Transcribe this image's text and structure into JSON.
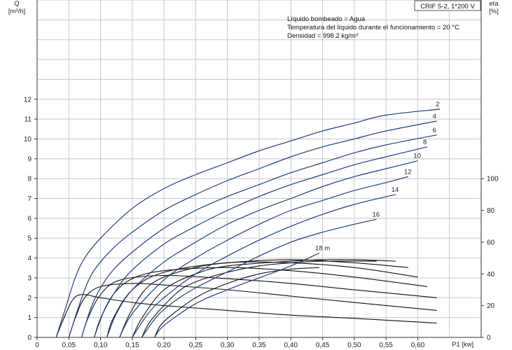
{
  "model_box": "CRIF 5-2, 1*200 V",
  "fluid_info": [
    "Líquido bombeado = Agua",
    "Temperatura del líquido durante el funcionamiento = 20 °C",
    "Densidad = 998.2 kg/m³"
  ],
  "colors": {
    "q_curves": "#1e3f78",
    "eta_curves": "#111111",
    "grid": "#c8c8c8",
    "axis": "#333333"
  },
  "chart_data": {
    "type": "line",
    "xlabel": "P1 [kw]",
    "ylabel_left": [
      "Q",
      "[m³/h]"
    ],
    "ylabel_right": [
      "eta",
      "[%]"
    ],
    "x_ticks": [
      "0",
      "0,05",
      "0,10",
      "0,15",
      "0,20",
      "0,25",
      "0,30",
      "0,35",
      "0,40",
      "0,45",
      "0,50",
      "0,55",
      "0,60"
    ],
    "x_tick_values": [
      0,
      0.05,
      0.1,
      0.15,
      0.2,
      0.25,
      0.3,
      0.35,
      0.4,
      0.45,
      0.5,
      0.55,
      0.6
    ],
    "xlim": [
      0,
      0.7
    ],
    "y_left_ticks": [
      "0",
      "1",
      "2",
      "3",
      "4",
      "5",
      "6",
      "7",
      "8",
      "9",
      "10",
      "11",
      "12"
    ],
    "y_left_tick_values": [
      0,
      1,
      2,
      3,
      4,
      5,
      6,
      7,
      8,
      9,
      10,
      11,
      12
    ],
    "ylim_left": [
      0,
      17
    ],
    "y_right_ticks": [
      "0",
      "20",
      "40",
      "60",
      "80",
      "100"
    ],
    "y_right_tick_values": [
      0,
      20,
      40,
      60,
      80,
      100
    ],
    "grid": true,
    "q_series": [
      {
        "name": "2",
        "points": [
          [
            0.03,
            0
          ],
          [
            0.045,
            1.5
          ],
          [
            0.06,
            3.0
          ],
          [
            0.075,
            4.0
          ],
          [
            0.1,
            5.0
          ],
          [
            0.15,
            6.5
          ],
          [
            0.2,
            7.5
          ],
          [
            0.25,
            8.2
          ],
          [
            0.3,
            8.8
          ],
          [
            0.35,
            9.4
          ],
          [
            0.4,
            9.9
          ],
          [
            0.45,
            10.4
          ],
          [
            0.5,
            10.8
          ],
          [
            0.55,
            11.2
          ],
          [
            0.635,
            11.5
          ]
        ]
      },
      {
        "name": "4",
        "points": [
          [
            0.05,
            0
          ],
          [
            0.065,
            1.5
          ],
          [
            0.08,
            2.8
          ],
          [
            0.095,
            3.6
          ],
          [
            0.12,
            4.5
          ],
          [
            0.15,
            5.3
          ],
          [
            0.2,
            6.4
          ],
          [
            0.25,
            7.2
          ],
          [
            0.3,
            7.9
          ],
          [
            0.35,
            8.5
          ],
          [
            0.4,
            9.1
          ],
          [
            0.45,
            9.6
          ],
          [
            0.5,
            10.0
          ],
          [
            0.55,
            10.4
          ],
          [
            0.63,
            10.9
          ]
        ]
      },
      {
        "name": "6",
        "points": [
          [
            0.07,
            0
          ],
          [
            0.085,
            1.5
          ],
          [
            0.1,
            2.5
          ],
          [
            0.12,
            3.4
          ],
          [
            0.15,
            4.3
          ],
          [
            0.2,
            5.5
          ],
          [
            0.25,
            6.4
          ],
          [
            0.3,
            7.1
          ],
          [
            0.35,
            7.7
          ],
          [
            0.4,
            8.3
          ],
          [
            0.45,
            8.8
          ],
          [
            0.5,
            9.3
          ],
          [
            0.55,
            9.7
          ],
          [
            0.63,
            10.2
          ]
        ]
      },
      {
        "name": "8",
        "points": [
          [
            0.09,
            0
          ],
          [
            0.105,
            1.3
          ],
          [
            0.125,
            2.4
          ],
          [
            0.15,
            3.4
          ],
          [
            0.2,
            4.7
          ],
          [
            0.25,
            5.6
          ],
          [
            0.3,
            6.4
          ],
          [
            0.35,
            7.1
          ],
          [
            0.4,
            7.7
          ],
          [
            0.45,
            8.2
          ],
          [
            0.5,
            8.7
          ],
          [
            0.55,
            9.1
          ],
          [
            0.615,
            9.6
          ]
        ]
      },
      {
        "name": "10",
        "points": [
          [
            0.11,
            0
          ],
          [
            0.125,
            1.2
          ],
          [
            0.15,
            2.4
          ],
          [
            0.2,
            3.8
          ],
          [
            0.25,
            4.8
          ],
          [
            0.3,
            5.7
          ],
          [
            0.35,
            6.4
          ],
          [
            0.4,
            7.0
          ],
          [
            0.45,
            7.6
          ],
          [
            0.5,
            8.1
          ],
          [
            0.55,
            8.5
          ],
          [
            0.6,
            8.9
          ]
        ]
      },
      {
        "name": "12",
        "points": [
          [
            0.13,
            0
          ],
          [
            0.15,
            1.2
          ],
          [
            0.2,
            2.9
          ],
          [
            0.25,
            4.0
          ],
          [
            0.3,
            4.9
          ],
          [
            0.35,
            5.7
          ],
          [
            0.4,
            6.4
          ],
          [
            0.45,
            6.9
          ],
          [
            0.5,
            7.4
          ],
          [
            0.55,
            7.8
          ],
          [
            0.585,
            8.1
          ]
        ]
      },
      {
        "name": "14",
        "points": [
          [
            0.15,
            0
          ],
          [
            0.175,
            1.2
          ],
          [
            0.2,
            2.0
          ],
          [
            0.25,
            3.2
          ],
          [
            0.3,
            4.1
          ],
          [
            0.35,
            4.9
          ],
          [
            0.4,
            5.6
          ],
          [
            0.45,
            6.2
          ],
          [
            0.5,
            6.7
          ],
          [
            0.565,
            7.2
          ]
        ]
      },
      {
        "name": "16",
        "points": [
          [
            0.165,
            0
          ],
          [
            0.19,
            1.1
          ],
          [
            0.22,
            1.9
          ],
          [
            0.25,
            2.5
          ],
          [
            0.3,
            3.3
          ],
          [
            0.35,
            4.1
          ],
          [
            0.4,
            4.8
          ],
          [
            0.45,
            5.3
          ],
          [
            0.5,
            5.7
          ],
          [
            0.535,
            5.95
          ]
        ]
      },
      {
        "name": "18 m",
        "points": [
          [
            0.185,
            0
          ],
          [
            0.2,
            0.6
          ],
          [
            0.25,
            1.7
          ],
          [
            0.3,
            2.4
          ],
          [
            0.35,
            3.0
          ],
          [
            0.4,
            3.6
          ],
          [
            0.445,
            4.25
          ]
        ]
      }
    ],
    "eta_series": [
      {
        "points": [
          [
            0.03,
            0
          ],
          [
            0.04,
            10
          ],
          [
            0.055,
            23
          ],
          [
            0.07,
            27
          ],
          [
            0.1,
            25
          ],
          [
            0.15,
            22
          ],
          [
            0.2,
            20
          ],
          [
            0.3,
            17
          ],
          [
            0.4,
            14
          ],
          [
            0.5,
            12
          ],
          [
            0.63,
            9
          ]
        ]
      },
      {
        "points": [
          [
            0.05,
            0
          ],
          [
            0.06,
            12
          ],
          [
            0.075,
            25
          ],
          [
            0.1,
            32
          ],
          [
            0.15,
            34
          ],
          [
            0.2,
            33
          ],
          [
            0.3,
            30
          ],
          [
            0.4,
            26
          ],
          [
            0.5,
            22
          ],
          [
            0.63,
            17
          ]
        ]
      },
      {
        "points": [
          [
            0.07,
            0
          ],
          [
            0.08,
            12
          ],
          [
            0.1,
            27
          ],
          [
            0.13,
            36
          ],
          [
            0.2,
            39
          ],
          [
            0.3,
            37
          ],
          [
            0.4,
            34
          ],
          [
            0.5,
            30
          ],
          [
            0.63,
            25
          ]
        ]
      },
      {
        "points": [
          [
            0.09,
            0
          ],
          [
            0.1,
            12
          ],
          [
            0.12,
            27
          ],
          [
            0.15,
            37
          ],
          [
            0.2,
            42
          ],
          [
            0.3,
            44
          ],
          [
            0.4,
            42
          ],
          [
            0.5,
            38
          ],
          [
            0.615,
            32
          ]
        ]
      },
      {
        "points": [
          [
            0.11,
            0
          ],
          [
            0.12,
            12
          ],
          [
            0.15,
            30
          ],
          [
            0.2,
            41
          ],
          [
            0.3,
            47
          ],
          [
            0.4,
            47
          ],
          [
            0.5,
            44
          ],
          [
            0.6,
            38
          ]
        ]
      },
      {
        "points": [
          [
            0.13,
            0
          ],
          [
            0.145,
            14
          ],
          [
            0.17,
            30
          ],
          [
            0.2,
            38
          ],
          [
            0.25,
            44
          ],
          [
            0.3,
            47
          ],
          [
            0.4,
            49
          ],
          [
            0.5,
            47
          ],
          [
            0.585,
            44
          ]
        ]
      },
      {
        "points": [
          [
            0.15,
            0
          ],
          [
            0.165,
            12
          ],
          [
            0.2,
            30
          ],
          [
            0.25,
            40
          ],
          [
            0.3,
            45
          ],
          [
            0.4,
            48
          ],
          [
            0.45,
            49
          ],
          [
            0.5,
            49
          ],
          [
            0.565,
            48
          ]
        ]
      },
      {
        "points": [
          [
            0.165,
            0
          ],
          [
            0.18,
            11
          ],
          [
            0.22,
            28
          ],
          [
            0.25,
            35
          ],
          [
            0.3,
            41
          ],
          [
            0.35,
            45
          ],
          [
            0.4,
            47
          ],
          [
            0.45,
            48
          ],
          [
            0.535,
            48
          ]
        ]
      },
      {
        "points": [
          [
            0.185,
            0
          ],
          [
            0.2,
            10
          ],
          [
            0.25,
            25
          ],
          [
            0.3,
            34
          ],
          [
            0.35,
            40
          ],
          [
            0.4,
            43
          ],
          [
            0.445,
            44
          ]
        ]
      }
    ]
  }
}
